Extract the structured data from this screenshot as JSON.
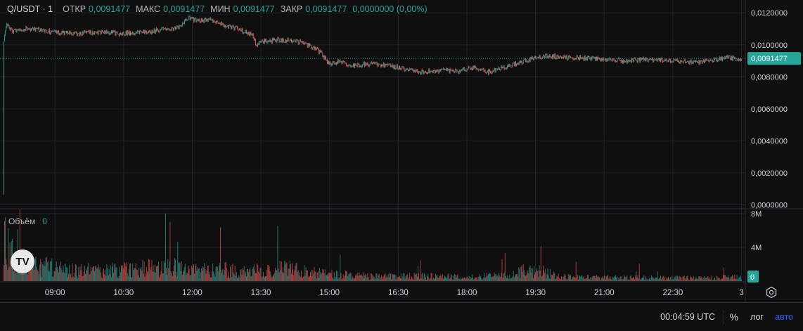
{
  "legend": {
    "symbol": "Q/USDT · 1",
    "open_label": "ОТКР",
    "open": "0,0091477",
    "high_label": "МАКС",
    "high": "0,0091477",
    "low_label": "МИН",
    "low": "0,0091477",
    "close_label": "ЗАКР",
    "close": "0,0091477",
    "change": "0,0000000 (0,00%)"
  },
  "volume_legend": {
    "label": "Объём",
    "value": "0"
  },
  "logo": {
    "text": "TV"
  },
  "bottom_bar": {
    "time": "00:04:59 UTC",
    "percent_label": "%",
    "log_label": "лог",
    "auto_label": "авто"
  },
  "colors": {
    "up": "#26a69a",
    "down": "#ef5350",
    "background": "#0f0f0f",
    "grid": "#1e222d",
    "text": "#d1d4dc",
    "auto": "#2962ff"
  },
  "chart_data": [
    {
      "type": "candlestick",
      "title": "",
      "price_axis": {
        "ticks": [
          "0,0120000",
          "0,0100000",
          "0,0080000",
          "0,0060000",
          "0,0040000",
          "0,0020000",
          "0,0000000"
        ],
        "tick_values": [
          0.012,
          0.01,
          0.008,
          0.006,
          0.004,
          0.002,
          0.0
        ],
        "range": [
          -0.0002,
          0.0128
        ],
        "last_price": 0.0091477,
        "last_price_label": "0,0091477"
      },
      "time_axis": {
        "ticks": [
          "09:00",
          "10:30",
          "12:00",
          "13:30",
          "15:00",
          "16:30",
          "18:00",
          "19:30",
          "21:00",
          "22:30",
          "3"
        ],
        "tick_minutes": [
          540,
          630,
          720,
          810,
          900,
          990,
          1080,
          1170,
          1260,
          1350,
          1440
        ],
        "range_minutes": [
          468,
          1445
        ]
      },
      "series": {
        "name": "Q/USDT",
        "path_minutes": [
          473,
          474,
          476,
          478,
          485,
          495,
          510,
          540,
          570,
          600,
          630,
          660,
          690,
          705,
          715,
          730,
          745,
          765,
          780,
          800,
          805,
          815,
          830,
          860,
          880,
          890,
          900,
          915,
          930,
          960,
          990,
          1020,
          1050,
          1070,
          1090,
          1110,
          1130,
          1150,
          1170,
          1190,
          1210,
          1230,
          1260,
          1290,
          1320,
          1350,
          1380,
          1400,
          1420,
          1440
        ],
        "path_values": [
          0.0007,
          0.0102,
          0.0109,
          0.0113,
          0.0108,
          0.011,
          0.011,
          0.0108,
          0.0107,
          0.0108,
          0.0107,
          0.0108,
          0.011,
          0.0111,
          0.0117,
          0.0115,
          0.0116,
          0.0112,
          0.011,
          0.0106,
          0.01,
          0.0102,
          0.0103,
          0.0102,
          0.0098,
          0.0095,
          0.0088,
          0.009,
          0.0087,
          0.0088,
          0.0086,
          0.0083,
          0.0084,
          0.0083,
          0.0086,
          0.0083,
          0.0086,
          0.0089,
          0.0092,
          0.0093,
          0.0092,
          0.0092,
          0.0091,
          0.009,
          0.0091,
          0.009,
          0.0089,
          0.009,
          0.0092,
          0.0091
        ]
      }
    },
    {
      "type": "bar",
      "title": "",
      "name": "Объём",
      "volume_axis": {
        "ticks": [
          "8M",
          "4M",
          "0"
        ],
        "tick_values": [
          8000000,
          4000000,
          0
        ],
        "range": [
          0,
          8500000
        ]
      },
      "bar_profile_minutes": [
        473,
        490,
        520,
        560,
        600,
        660,
        700,
        720,
        760,
        800,
        840,
        880,
        900,
        960,
        1020,
        1080,
        1140,
        1165,
        1200,
        1260,
        1320,
        1380,
        1440
      ],
      "bar_profile_values": [
        8000000,
        3500000,
        3000000,
        2200000,
        2000000,
        2500000,
        3000000,
        2000000,
        2200000,
        2000000,
        2500000,
        1600000,
        1400000,
        900000,
        1000000,
        800000,
        1200000,
        2500000,
        900000,
        700000,
        700000,
        600000,
        800000
      ],
      "last_value_label": "0"
    }
  ]
}
